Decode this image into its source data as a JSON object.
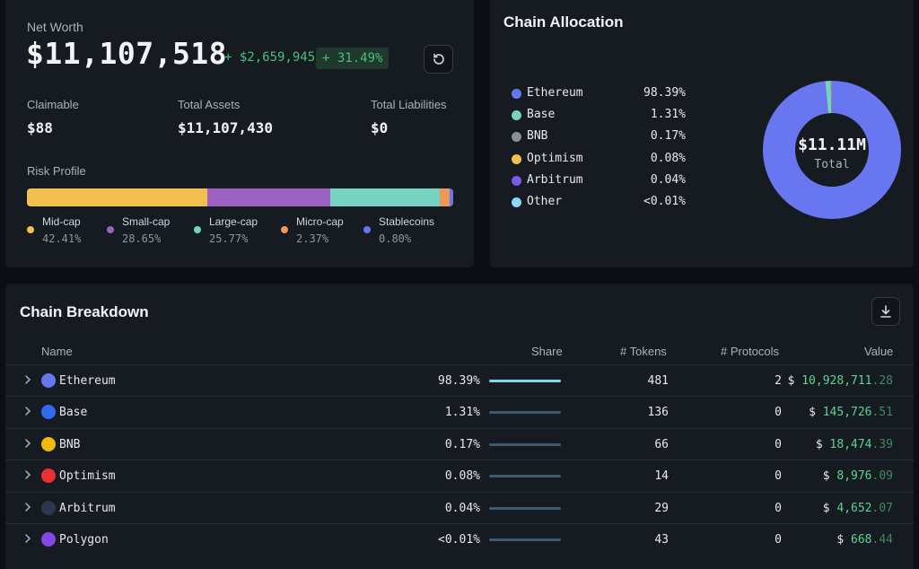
{
  "net_worth": {
    "label": "Net Worth",
    "value": "$11,107,518",
    "change": "+ $2,659,945",
    "change_pct": "+ 31.49%",
    "refresh_icon": "refresh-icon",
    "stats": {
      "claimable_label": "Claimable",
      "claimable_value": "$88",
      "total_assets_label": "Total Assets",
      "total_assets_value": "$11,107,430",
      "total_liabilities_label": "Total Liabilities",
      "total_liabilities_value": "$0"
    },
    "risk_profile": {
      "label": "Risk Profile",
      "segments": [
        {
          "name": "Mid-cap",
          "pct": "42.41%",
          "value": 42.41,
          "color": "#f2c04f"
        },
        {
          "name": "Small-cap",
          "pct": "28.65%",
          "value": 28.65,
          "color": "#9b62c2"
        },
        {
          "name": "Large-cap",
          "pct": "25.77%",
          "value": 25.77,
          "color": "#76d3c1"
        },
        {
          "name": "Micro-cap",
          "pct": "2.37%",
          "value": 2.37,
          "color": "#ee9858"
        },
        {
          "name": "Stablecoins",
          "pct": "0.80%",
          "value": 0.8,
          "color": "#6877ef"
        }
      ]
    }
  },
  "chain_allocation": {
    "title": "Chain Allocation",
    "items": [
      {
        "name": "Ethereum",
        "pct": "98.39%",
        "color": "#6877ef"
      },
      {
        "name": "Base",
        "pct": "1.31%",
        "color": "#76d3c1"
      },
      {
        "name": "BNB",
        "pct": "0.17%",
        "color": "#8a8f96"
      },
      {
        "name": "Optimism",
        "pct": "0.08%",
        "color": "#f2c04f"
      },
      {
        "name": "Arbitrum",
        "pct": "0.04%",
        "color": "#7c5be6"
      },
      {
        "name": "Other",
        "pct": "<0.01%",
        "color": "#8dd6f4"
      }
    ],
    "donut_value": "$11.11M",
    "donut_label": "Total"
  },
  "chart_data": {
    "type": "pie",
    "categories": [
      "Ethereum",
      "Base",
      "BNB",
      "Optimism",
      "Arbitrum",
      "Other"
    ],
    "values": [
      98.39,
      1.31,
      0.17,
      0.08,
      0.04,
      0.01
    ],
    "colors": [
      "#6877ef",
      "#76d3c1",
      "#8a8f96",
      "#f2c04f",
      "#7c5be6",
      "#8dd6f4"
    ],
    "title": "Chain Allocation"
  },
  "chain_breakdown": {
    "title": "Chain Breakdown",
    "download_icon": "download-icon",
    "columns": {
      "name": "Name",
      "share": "Share",
      "tokens": "# Tokens",
      "protocols": "# Protocols",
      "value": "Value"
    },
    "rows": [
      {
        "name": "Ethereum",
        "share": "98.39%",
        "tokens": "481",
        "protocols": "2",
        "currency": "$",
        "value_int": "10,928,711",
        "value_dec": ".28",
        "icon_color": "#6877ef",
        "primary": true
      },
      {
        "name": "Base",
        "share": "1.31%",
        "tokens": "136",
        "protocols": "0",
        "currency": "$",
        "value_int": "145,726",
        "value_dec": ".51",
        "icon_color": "#2f6bf0",
        "primary": false
      },
      {
        "name": "BNB",
        "share": "0.17%",
        "tokens": "66",
        "protocols": "0",
        "currency": "$",
        "value_int": "18,474",
        "value_dec": ".39",
        "icon_color": "#f0b90b",
        "primary": false
      },
      {
        "name": "Optimism",
        "share": "0.08%",
        "tokens": "14",
        "protocols": "0",
        "currency": "$",
        "value_int": "8,976",
        "value_dec": ".09",
        "icon_color": "#e8312f",
        "primary": false
      },
      {
        "name": "Arbitrum",
        "share": "0.04%",
        "tokens": "29",
        "protocols": "0",
        "currency": "$",
        "value_int": "4,652",
        "value_dec": ".07",
        "icon_color": "#2d374b",
        "primary": false
      },
      {
        "name": "Polygon",
        "share": "<0.01%",
        "tokens": "43",
        "protocols": "0",
        "currency": "$",
        "value_int": "668",
        "value_dec": ".44",
        "icon_color": "#8247e5",
        "primary": false
      }
    ]
  }
}
